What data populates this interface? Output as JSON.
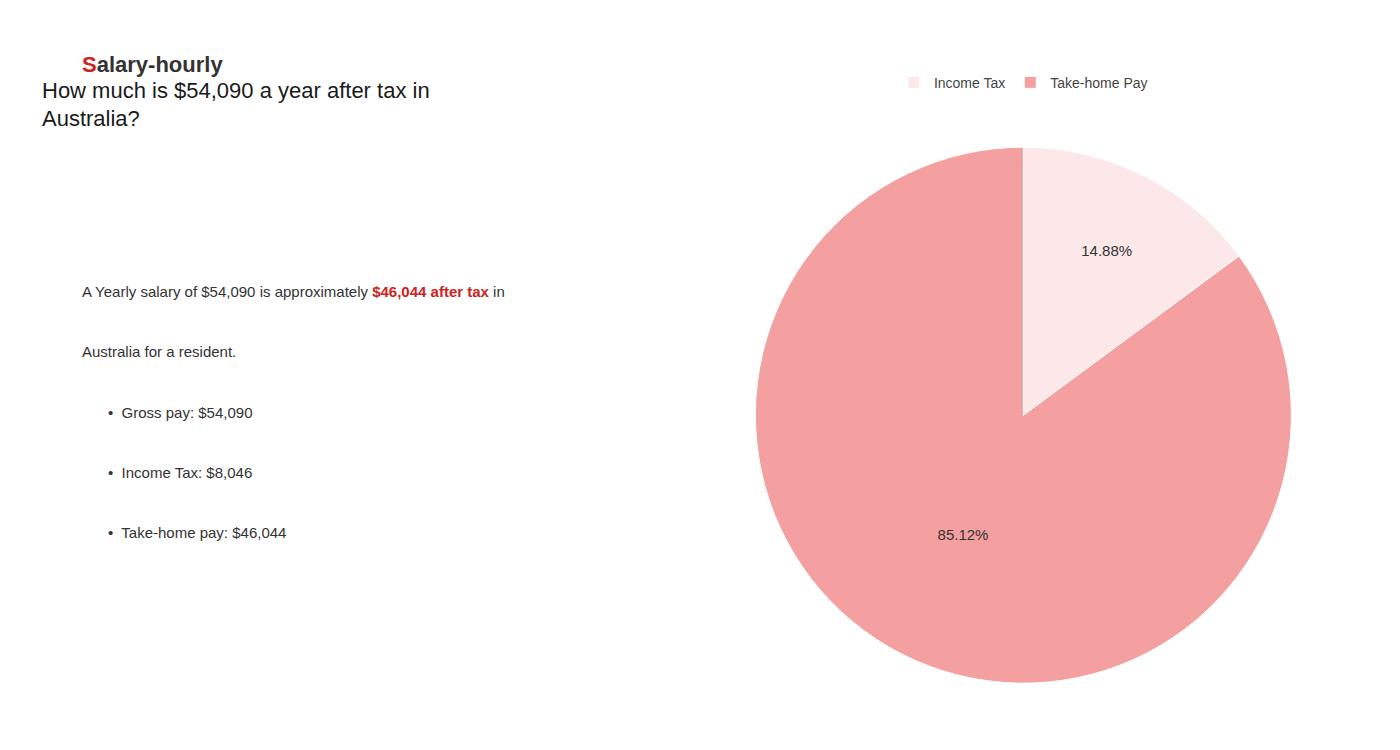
{
  "chart_data": {
    "type": "pie",
    "title": "How much is $54,090 a year after tax in\nAustralia?",
    "categories": [
      "Income Tax",
      "Take-home Pay"
    ],
    "values": [
      14.88,
      85.12
    ],
    "value_labels": [
      "14.88%",
      "85.12%"
    ],
    "colors": [
      "#fce8e8",
      "#f5a0a0"
    ],
    "data_labels": true,
    "legend": "top",
    "annotations": [
      [
        {
          "text": "S",
          "color": "#cc2222"
        },
        {
          "text": "alary-hourly"
        }
      ],
      [
        {
          "text": "A Yearly salary of $54,090 is approximately "
        },
        {
          "text": "$46,044 after tax",
          "color": "#cc2222"
        },
        {
          "text": " in"
        }
      ],
      [
        {
          "text": "Australia for a resident."
        }
      ],
      [
        {
          "text": "•  Gross pay: $54,090"
        }
      ],
      [
        {
          "text": "•  Income Tax: $8,046"
        }
      ],
      [
        {
          "text": "•  Take-home pay: $46,044"
        }
      ]
    ]
  }
}
